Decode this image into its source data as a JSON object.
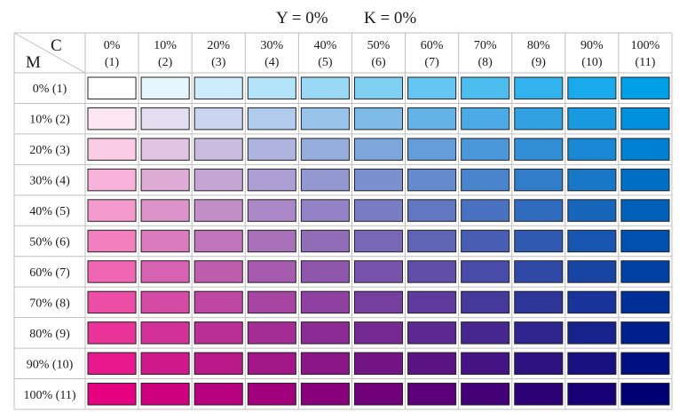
{
  "title": {
    "y_label": "Y = 0%",
    "k_label": "K = 0%"
  },
  "corner": {
    "c_label": "C",
    "m_label": "M"
  },
  "c_headers": [
    {
      "pct": "0%",
      "idx": "(1)"
    },
    {
      "pct": "10%",
      "idx": "(2)"
    },
    {
      "pct": "20%",
      "idx": "(3)"
    },
    {
      "pct": "30%",
      "idx": "(4)"
    },
    {
      "pct": "40%",
      "idx": "(5)"
    },
    {
      "pct": "50%",
      "idx": "(6)"
    },
    {
      "pct": "60%",
      "idx": "(7)"
    },
    {
      "pct": "70%",
      "idx": "(8)"
    },
    {
      "pct": "80%",
      "idx": "(9)"
    },
    {
      "pct": "90%",
      "idx": "(10)"
    },
    {
      "pct": "100%",
      "idx": "(11)"
    }
  ],
  "m_headers": [
    "0% (1)",
    "10% (2)",
    "20% (3)",
    "30% (4)",
    "40% (5)",
    "50% (6)",
    "60% (7)",
    "70% (8)",
    "80% (9)",
    "90% (10)",
    "100% (11)"
  ],
  "c_values": [
    0,
    10,
    20,
    30,
    40,
    50,
    60,
    70,
    80,
    90,
    100
  ],
  "m_values": [
    0,
    10,
    20,
    30,
    40,
    50,
    60,
    70,
    80,
    90,
    100
  ],
  "colors": {
    "paper": "#ffffff",
    "cyan_ink": "#00a0e9",
    "magenta_ink": "#e4007f",
    "cell_border": "#222222",
    "grid_line": "#bfbfbf"
  }
}
